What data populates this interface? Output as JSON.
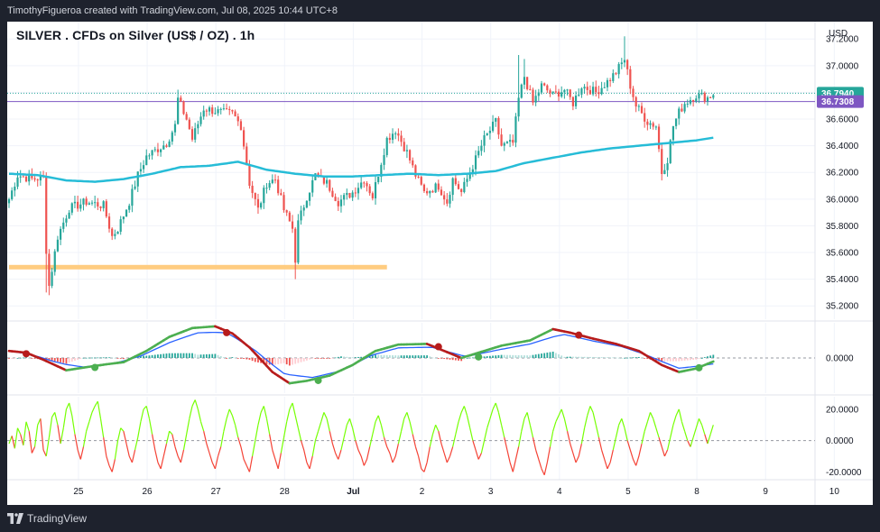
{
  "header": {
    "caption": "TimothyFigueroa created with TradingView.com, Jul 08, 2025 10:44 UTC+8"
  },
  "symbol": {
    "title": "SILVER . CFDs on Silver (US$ / OZ) . 1h"
  },
  "footer": {
    "brand": "TradingView"
  },
  "colors": {
    "up": "#26a69a",
    "down": "#ef5350",
    "ma": "#26bcd7",
    "support": "#ffcc80",
    "osc_fast": "#4caf50",
    "osc_slow": "#b71c1c",
    "osc_signal": "#2962ff",
    "last_price": "#26a69a",
    "line_price": "#7e57c2",
    "rsi_up": "#76ff03",
    "rsi_down": "#f44336"
  },
  "chart_data": [
    {
      "type": "candlestick",
      "currency": "USD",
      "yticks": [
        "37.2000",
        "37.0000",
        "36.8000",
        "36.6000",
        "36.4000",
        "36.2000",
        "36.0000",
        "35.8000",
        "35.6000",
        "35.4000",
        "35.2000"
      ],
      "ylim": [
        35.1,
        37.33
      ],
      "xticks": [
        {
          "label": "25",
          "at": 24.25
        },
        {
          "label": "26",
          "at": 48.25
        },
        {
          "label": "27",
          "at": 72.25
        },
        {
          "label": "28",
          "at": 96.25
        },
        {
          "label": "Jul",
          "at": 120.25
        },
        {
          "label": "2",
          "at": 144.25
        },
        {
          "label": "3",
          "at": 168.25
        },
        {
          "label": "4",
          "at": 192.25
        },
        {
          "label": "5",
          "at": 216.25
        },
        {
          "label": "8",
          "at": 240.25
        },
        {
          "label": "9",
          "at": 264.25
        },
        {
          "label": "10",
          "at": 288.25
        }
      ],
      "last_price": "36.7940",
      "line_price": "36.7308",
      "line_price_value": 36.7308,
      "support_level": 35.49,
      "support_range": [
        0,
        132
      ],
      "anchors": [
        {
          "i": 0,
          "c": 36.0
        },
        {
          "i": 3,
          "c": 36.18
        },
        {
          "i": 8,
          "c": 36.15
        },
        {
          "i": 12,
          "c": 36.16
        },
        {
          "i": 13,
          "c": 35.62
        },
        {
          "i": 14,
          "c": 35.35
        },
        {
          "i": 17,
          "c": 35.72
        },
        {
          "i": 21,
          "c": 35.93
        },
        {
          "i": 27,
          "c": 35.98
        },
        {
          "i": 33,
          "c": 35.95
        },
        {
          "i": 36,
          "c": 35.72
        },
        {
          "i": 38,
          "c": 35.78
        },
        {
          "i": 42,
          "c": 35.98
        },
        {
          "i": 45,
          "c": 36.18
        },
        {
          "i": 48,
          "c": 36.32
        },
        {
          "i": 55,
          "c": 36.42
        },
        {
          "i": 58,
          "c": 36.55
        },
        {
          "i": 59,
          "c": 36.75
        },
        {
          "i": 62,
          "c": 36.6
        },
        {
          "i": 64,
          "c": 36.45
        },
        {
          "i": 68,
          "c": 36.68
        },
        {
          "i": 74,
          "c": 36.65
        },
        {
          "i": 78,
          "c": 36.64
        },
        {
          "i": 81,
          "c": 36.55
        },
        {
          "i": 84,
          "c": 36.12
        },
        {
          "i": 87,
          "c": 35.92
        },
        {
          "i": 90,
          "c": 36.12
        },
        {
          "i": 93,
          "c": 36.15
        },
        {
          "i": 96,
          "c": 35.92
        },
        {
          "i": 99,
          "c": 35.78
        },
        {
          "i": 100,
          "c": 35.55
        },
        {
          "i": 101,
          "c": 35.82
        },
        {
          "i": 104,
          "c": 36.02
        },
        {
          "i": 107,
          "c": 36.18
        },
        {
          "i": 111,
          "c": 36.12
        },
        {
          "i": 115,
          "c": 35.98
        },
        {
          "i": 120,
          "c": 36.05
        },
        {
          "i": 124,
          "c": 36.15
        },
        {
          "i": 127,
          "c": 36.02
        },
        {
          "i": 130,
          "c": 36.28
        },
        {
          "i": 132,
          "c": 36.45
        },
        {
          "i": 135,
          "c": 36.52
        },
        {
          "i": 139,
          "c": 36.35
        },
        {
          "i": 142,
          "c": 36.18
        },
        {
          "i": 145,
          "c": 36.05
        },
        {
          "i": 150,
          "c": 36.1
        },
        {
          "i": 153,
          "c": 35.98
        },
        {
          "i": 155,
          "c": 36.15
        },
        {
          "i": 158,
          "c": 36.05
        },
        {
          "i": 162,
          "c": 36.25
        },
        {
          "i": 166,
          "c": 36.45
        },
        {
          "i": 170,
          "c": 36.58
        },
        {
          "i": 172,
          "c": 36.4
        },
        {
          "i": 176,
          "c": 36.42
        },
        {
          "i": 178,
          "c": 36.75
        },
        {
          "i": 180,
          "c": 36.92
        },
        {
          "i": 183,
          "c": 36.72
        },
        {
          "i": 186,
          "c": 36.85
        },
        {
          "i": 190,
          "c": 36.78
        },
        {
          "i": 194,
          "c": 36.82
        },
        {
          "i": 197,
          "c": 36.72
        },
        {
          "i": 200,
          "c": 36.85
        },
        {
          "i": 205,
          "c": 36.8
        },
        {
          "i": 209,
          "c": 36.88
        },
        {
          "i": 212,
          "c": 36.95
        },
        {
          "i": 215,
          "c": 37.05
        },
        {
          "i": 217,
          "c": 36.85
        },
        {
          "i": 219,
          "c": 36.7
        },
        {
          "i": 223,
          "c": 36.58
        },
        {
          "i": 226,
          "c": 36.55
        },
        {
          "i": 228,
          "c": 36.2
        },
        {
          "i": 230,
          "c": 36.3
        },
        {
          "i": 232,
          "c": 36.55
        },
        {
          "i": 234,
          "c": 36.65
        },
        {
          "i": 236,
          "c": 36.72
        },
        {
          "i": 240,
          "c": 36.78
        },
        {
          "i": 244,
          "c": 36.76
        },
        {
          "i": 246,
          "c": 36.79
        }
      ],
      "ma_anchors": [
        {
          "i": 0,
          "v": 36.19
        },
        {
          "i": 10,
          "v": 36.18
        },
        {
          "i": 20,
          "v": 36.14
        },
        {
          "i": 30,
          "v": 36.13
        },
        {
          "i": 40,
          "v": 36.15
        },
        {
          "i": 50,
          "v": 36.19
        },
        {
          "i": 60,
          "v": 36.24
        },
        {
          "i": 70,
          "v": 36.25
        },
        {
          "i": 80,
          "v": 36.28
        },
        {
          "i": 90,
          "v": 36.22
        },
        {
          "i": 100,
          "v": 36.19
        },
        {
          "i": 110,
          "v": 36.17
        },
        {
          "i": 120,
          "v": 36.17
        },
        {
          "i": 130,
          "v": 36.18
        },
        {
          "i": 140,
          "v": 36.19
        },
        {
          "i": 150,
          "v": 36.18
        },
        {
          "i": 160,
          "v": 36.19
        },
        {
          "i": 170,
          "v": 36.21
        },
        {
          "i": 180,
          "v": 36.27
        },
        {
          "i": 190,
          "v": 36.31
        },
        {
          "i": 200,
          "v": 36.35
        },
        {
          "i": 210,
          "v": 36.38
        },
        {
          "i": 220,
          "v": 36.4
        },
        {
          "i": 230,
          "v": 36.42
        },
        {
          "i": 240,
          "v": 36.44
        },
        {
          "i": 246,
          "v": 36.46
        }
      ]
    },
    {
      "type": "oscillator",
      "zero_label": "0.0000",
      "ylim": [
        -1.0,
        1.0
      ],
      "fast_anchors": [
        {
          "i": 0,
          "v": 0.2
        },
        {
          "i": 6,
          "v": 0.15
        },
        {
          "i": 12,
          "v": -0.05
        },
        {
          "i": 20,
          "v": -0.35
        },
        {
          "i": 28,
          "v": -0.25
        },
        {
          "i": 34,
          "v": -0.18
        },
        {
          "i": 40,
          "v": -0.12
        },
        {
          "i": 48,
          "v": 0.2
        },
        {
          "i": 56,
          "v": 0.6
        },
        {
          "i": 64,
          "v": 0.85
        },
        {
          "i": 72,
          "v": 0.9
        },
        {
          "i": 78,
          "v": 0.7
        },
        {
          "i": 84,
          "v": 0.3
        },
        {
          "i": 92,
          "v": -0.4
        },
        {
          "i": 98,
          "v": -0.72
        },
        {
          "i": 104,
          "v": -0.65
        },
        {
          "i": 112,
          "v": -0.5
        },
        {
          "i": 120,
          "v": -0.2
        },
        {
          "i": 128,
          "v": 0.2
        },
        {
          "i": 136,
          "v": 0.38
        },
        {
          "i": 146,
          "v": 0.4
        },
        {
          "i": 152,
          "v": 0.2
        },
        {
          "i": 158,
          "v": 0.0
        },
        {
          "i": 164,
          "v": 0.15
        },
        {
          "i": 172,
          "v": 0.35
        },
        {
          "i": 182,
          "v": 0.5
        },
        {
          "i": 190,
          "v": 0.82
        },
        {
          "i": 196,
          "v": 0.72
        },
        {
          "i": 204,
          "v": 0.55
        },
        {
          "i": 212,
          "v": 0.4
        },
        {
          "i": 220,
          "v": 0.2
        },
        {
          "i": 228,
          "v": -0.2
        },
        {
          "i": 234,
          "v": -0.4
        },
        {
          "i": 240,
          "v": -0.3
        },
        {
          "i": 246,
          "v": -0.1
        }
      ],
      "slow_anchors": [
        {
          "i": 0,
          "v": 0.22
        },
        {
          "i": 8,
          "v": 0.1
        },
        {
          "i": 16,
          "v": -0.1
        },
        {
          "i": 26,
          "v": -0.28
        },
        {
          "i": 36,
          "v": -0.18
        },
        {
          "i": 46,
          "v": 0.05
        },
        {
          "i": 56,
          "v": 0.45
        },
        {
          "i": 66,
          "v": 0.76
        },
        {
          "i": 76,
          "v": 0.78
        },
        {
          "i": 86,
          "v": 0.25
        },
        {
          "i": 96,
          "v": -0.45
        },
        {
          "i": 106,
          "v": -0.6
        },
        {
          "i": 116,
          "v": -0.4
        },
        {
          "i": 126,
          "v": 0.05
        },
        {
          "i": 136,
          "v": 0.3
        },
        {
          "i": 148,
          "v": 0.32
        },
        {
          "i": 160,
          "v": 0.05
        },
        {
          "i": 170,
          "v": 0.22
        },
        {
          "i": 182,
          "v": 0.42
        },
        {
          "i": 194,
          "v": 0.72
        },
        {
          "i": 204,
          "v": 0.52
        },
        {
          "i": 214,
          "v": 0.35
        },
        {
          "i": 224,
          "v": 0.05
        },
        {
          "i": 234,
          "v": -0.3
        },
        {
          "i": 246,
          "v": -0.2
        }
      ],
      "crosses": [
        {
          "i": 6,
          "v": 0.12,
          "kind": "bear"
        },
        {
          "i": 30,
          "v": -0.27,
          "kind": "bull"
        },
        {
          "i": 76,
          "v": 0.72,
          "kind": "bear"
        },
        {
          "i": 108,
          "v": -0.64,
          "kind": "bull"
        },
        {
          "i": 150,
          "v": 0.32,
          "kind": "bear"
        },
        {
          "i": 164,
          "v": 0.03,
          "kind": "bull"
        },
        {
          "i": 199,
          "v": 0.65,
          "kind": "bear"
        },
        {
          "i": 241,
          "v": -0.28,
          "kind": "bull"
        }
      ]
    },
    {
      "type": "line",
      "yticks": [
        "20.0000",
        "0.0000",
        "-20.0000"
      ],
      "ylim": [
        -25,
        28
      ],
      "values": [
        -2,
        3,
        -5,
        8,
        4,
        -3,
        12,
        6,
        -8,
        -4,
        10,
        14,
        -6,
        -10,
        2,
        15,
        18,
        10,
        -2,
        8,
        20,
        24,
        16,
        4,
        -6,
        -12,
        -4,
        6,
        12,
        18,
        22,
        25,
        14,
        2,
        -10,
        -16,
        -20,
        -12,
        0,
        8,
        6,
        -2,
        -10,
        -14,
        -6,
        2,
        12,
        20,
        22,
        14,
        4,
        -6,
        -14,
        -18,
        -10,
        -2,
        6,
        4,
        -4,
        -10,
        -14,
        -6,
        4,
        14,
        22,
        26,
        20,
        12,
        6,
        -2,
        -8,
        -14,
        -18,
        -10,
        -4,
        6,
        14,
        20,
        16,
        10,
        2,
        -4,
        -12,
        -16,
        -20,
        -10,
        0,
        10,
        18,
        22,
        14,
        4,
        -6,
        -12,
        -18,
        -8,
        2,
        12,
        20,
        24,
        16,
        8,
        0,
        -6,
        -14,
        -18,
        -10,
        0,
        6,
        12,
        18,
        14,
        6,
        -2,
        -8,
        -12,
        -6,
        2,
        10,
        14,
        8,
        0,
        -6,
        -10,
        -16,
        -12,
        -4,
        4,
        12,
        16,
        10,
        2,
        -4,
        -8,
        -14,
        -10,
        -2,
        6,
        14,
        18,
        12,
        4,
        -4,
        -10,
        -18,
        -20,
        -14,
        -4,
        4,
        10,
        6,
        -2,
        -8,
        -14,
        -10,
        -4,
        4,
        12,
        18,
        22,
        16,
        8,
        0,
        -6,
        -12,
        -8,
        0,
        8,
        14,
        20,
        24,
        18,
        10,
        2,
        -6,
        -14,
        -20,
        -12,
        -4,
        6,
        14,
        18,
        10,
        2,
        -6,
        -12,
        -18,
        -22,
        -14,
        -4,
        6,
        12,
        16,
        20,
        14,
        6,
        -2,
        -8,
        -14,
        -10,
        -2,
        8,
        16,
        22,
        18,
        10,
        2,
        -6,
        -12,
        -18,
        -14,
        -6,
        2,
        10,
        14,
        8,
        0,
        -6,
        -12,
        -16,
        -10,
        -2,
        6,
        12,
        18,
        14,
        8,
        2,
        -4,
        -10,
        -6,
        2,
        10,
        16,
        20,
        12,
        6,
        0,
        -4,
        2,
        8,
        14,
        10,
        4,
        -2,
        4,
        10
      ]
    }
  ]
}
